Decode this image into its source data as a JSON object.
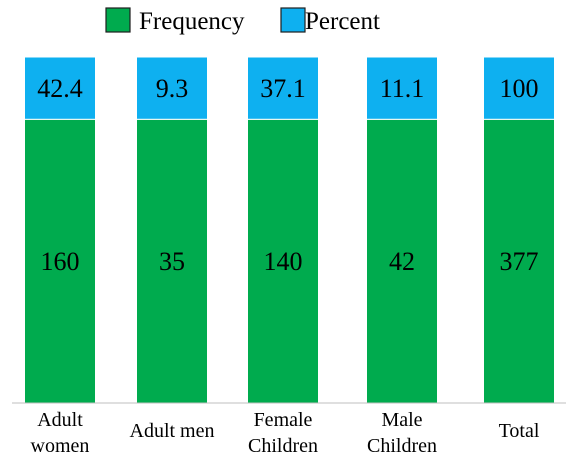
{
  "chart_data": {
    "type": "bar",
    "stacked": true,
    "normalized": true,
    "title": "",
    "xlabel": "",
    "ylabel": "",
    "legend_position": "top",
    "grid": false,
    "categories": [
      [
        "Adult",
        "women"
      ],
      [
        "Adult men"
      ],
      [
        "Female",
        "Children"
      ],
      [
        "Male",
        "Children"
      ],
      [
        "Total"
      ]
    ],
    "series": [
      {
        "name": "Frequency",
        "color": "#00ab4e",
        "values": [
          160,
          35,
          140,
          42,
          377
        ]
      },
      {
        "name": "Percent",
        "color": "#0eb0f0",
        "values": [
          42.4,
          9.3,
          37.1,
          11.1,
          100
        ]
      }
    ]
  }
}
